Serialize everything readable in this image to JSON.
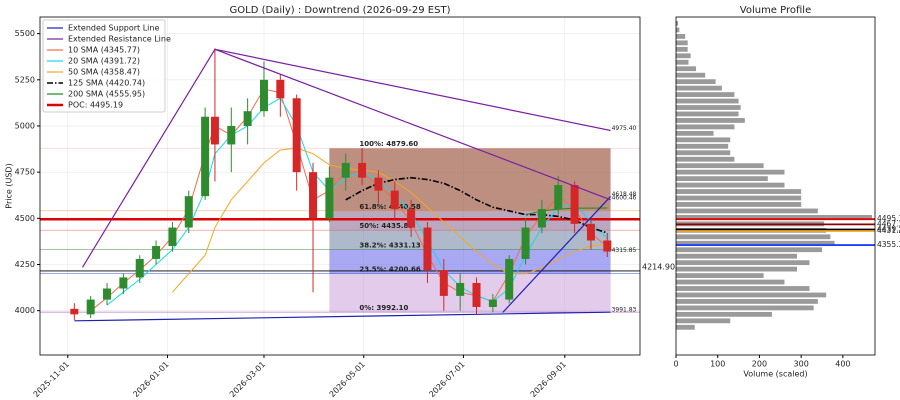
{
  "chart_data": [
    {
      "type": "candlestick",
      "title": "GOLD (Daily) : Downtrend (2026-09-29 EST)",
      "y_label": "Price (USD)",
      "x": [
        "2025-11-05",
        "2025-11-15",
        "2025-11-25",
        "2025-12-05",
        "2025-12-15",
        "2025-12-25",
        "2026-01-04",
        "2026-01-14",
        "2026-01-24",
        "2026-01-30",
        "2026-02-09",
        "2026-02-19",
        "2026-03-01",
        "2026-03-11",
        "2026-03-21",
        "2026-03-31",
        "2026-04-10",
        "2026-04-20",
        "2026-04-30",
        "2026-05-10",
        "2026-05-20",
        "2026-05-30",
        "2026-06-09",
        "2026-06-19",
        "2026-06-29",
        "2026-07-09",
        "2026-07-19",
        "2026-07-29",
        "2026-08-08",
        "2026-08-18",
        "2026-08-28",
        "2026-09-07",
        "2026-09-17",
        "2026-09-27"
      ],
      "open": [
        4010,
        3980,
        4060,
        4120,
        4180,
        4280,
        4350,
        4450,
        4620,
        5050,
        4900,
        5000,
        5080,
        5250,
        5150,
        4750,
        4500,
        4720,
        4800,
        4720,
        4650,
        4550,
        4450,
        4220,
        4080,
        4150,
        4020,
        4060,
        4280,
        4450,
        4550,
        4680,
        4470,
        4380
      ],
      "high": [
        4040,
        4080,
        4150,
        4200,
        4300,
        4380,
        4480,
        4650,
        5100,
        5420,
        5100,
        5150,
        5350,
        5280,
        5170,
        4800,
        4780,
        4850,
        4880,
        4760,
        4700,
        4600,
        4480,
        4280,
        4200,
        4180,
        4090,
        4300,
        4500,
        4600,
        4730,
        4700,
        4500,
        4420
      ],
      "low": [
        3950,
        3960,
        4030,
        4090,
        4150,
        4250,
        4320,
        4420,
        4600,
        4700,
        4750,
        4900,
        5050,
        5050,
        4650,
        4100,
        4480,
        4650,
        4680,
        4580,
        4500,
        4400,
        4150,
        4000,
        4000,
        3980,
        3990,
        4040,
        4250,
        4420,
        4520,
        4420,
        4330,
        4290
      ],
      "close": [
        3980,
        4060,
        4120,
        4180,
        4280,
        4350,
        4450,
        4620,
        5050,
        4900,
        5000,
        5080,
        5250,
        5150,
        4750,
        4500,
        4720,
        4800,
        4720,
        4650,
        4550,
        4450,
        4220,
        4080,
        4150,
        4020,
        4060,
        4280,
        4450,
        4550,
        4680,
        4470,
        4380,
        4320
      ],
      "up_color": "#2e8b2e",
      "down_color": "#d62728",
      "xlim": [
        "2025-10-15",
        "2026-10-17"
      ],
      "xticks": [
        "2025-11-01",
        "2026-01-01",
        "2026-03-01",
        "2026-05-01",
        "2026-07-01",
        "2026-09-01"
      ],
      "ylim": [
        3760,
        5590
      ],
      "yticks": [
        4000,
        4250,
        4500,
        4750,
        5000,
        5250,
        5500
      ],
      "grid": true,
      "legend": "upper left",
      "trend_lines": [
        {
          "name": "Extended Support Line",
          "color": "#1f1fb4",
          "x": [
            "2025-11-05",
            "2026-09-29",
            "2026-09-29",
            "2026-07-25",
            "2026-09-29"
          ],
          "values": [
            3945,
            3991.83,
            null,
            3990,
            4618.48
          ]
        },
        {
          "name": "Extended Resistance Line",
          "color": "#7b1fa2",
          "x": [
            "2025-11-10",
            "2026-01-30",
            "2026-09-29",
            "2026-09-29",
            "2026-01-30",
            "2026-09-29"
          ],
          "values": [
            4235,
            5415,
            4975.4,
            null,
            5415,
            4600.46
          ]
        }
      ],
      "series": [
        {
          "name": "10 SMA (4345.77)",
          "color": "#f26b4f",
          "style": "solid",
          "values": [
            null,
            4000,
            4070,
            4150,
            4220,
            4300,
            4400,
            4550,
            4850,
            5000,
            4950,
            5050,
            5200,
            5180,
            4900,
            4600,
            4650,
            4750,
            4750,
            4680,
            4600,
            4480,
            4300,
            4150,
            4100,
            4080,
            4050,
            4200,
            4400,
            4520,
            4620,
            4550,
            4420,
            4345.77
          ]
        },
        {
          "name": "20 SMA (4391.72)",
          "color": "#14d8f0",
          "style": "solid",
          "values": [
            null,
            null,
            4030,
            4100,
            4170,
            4250,
            4330,
            4450,
            4650,
            4850,
            4950,
            5000,
            5100,
            5150,
            5000,
            4750,
            4650,
            4720,
            4750,
            4700,
            4630,
            4530,
            4380,
            4220,
            4130,
            4080,
            4050,
            4120,
            4300,
            4450,
            4560,
            4580,
            4480,
            4391.72
          ]
        },
        {
          "name": "50 SMA (4358.47)",
          "color": "#f5a623",
          "style": "solid",
          "values": [
            null,
            null,
            null,
            null,
            null,
            null,
            4100,
            4200,
            4300,
            4450,
            4600,
            4700,
            4800,
            4870,
            4880,
            4850,
            4790,
            4770,
            4760,
            4750,
            4700,
            4640,
            4560,
            4480,
            4400,
            4320,
            4250,
            4200,
            4200,
            4230,
            4280,
            4320,
            4350,
            4358.47
          ]
        },
        {
          "name": "125 SMA (4420.74)",
          "color": "#000000",
          "style": "dashdot",
          "values": [
            null,
            null,
            null,
            null,
            null,
            null,
            null,
            null,
            null,
            null,
            null,
            null,
            null,
            null,
            null,
            null,
            null,
            4600,
            4650,
            4690,
            4710,
            4720,
            4710,
            4690,
            4650,
            4600,
            4560,
            4540,
            4520,
            4520,
            4510,
            4490,
            4450,
            4420.74
          ]
        },
        {
          "name": "200 SMA (4555.95)",
          "color": "#1a8a1a",
          "style": "solid",
          "values": [
            null,
            null,
            null,
            null,
            null,
            null,
            null,
            null,
            null,
            null,
            null,
            null,
            null,
            null,
            null,
            null,
            null,
            null,
            null,
            null,
            null,
            null,
            null,
            null,
            null,
            null,
            null,
            null,
            4520,
            4540,
            4550,
            4555,
            4555,
            4555.95
          ]
        }
      ],
      "levels": [
        {
          "name": "POC: 4495.19",
          "value": 4495.19,
          "color": "#e00000"
        },
        {
          "value": 4214.9,
          "label": "4214.90",
          "color": "#000000"
        }
      ],
      "end_labels": [
        {
          "value": 4975.4,
          "label": "4975.40",
          "color": "#7b1fa2"
        },
        {
          "value": 4618.48,
          "label": "4618.48",
          "color": "#1f1fb4"
        },
        {
          "value": 4600.46,
          "label": "4600.46",
          "color": "#7b1fa2"
        },
        {
          "value": 4315.85,
          "label": "4315.85",
          "color": "#7b1fa2"
        },
        {
          "value": 3991.83,
          "label": "3991.83",
          "color": "#1f1fb4"
        }
      ],
      "fibonacci": {
        "x": [
          "2026-04-10",
          "2026-09-29"
        ],
        "levels": [
          {
            "value": 3992.1,
            "label": "0%: 3992.10",
            "color": "#8e24aa"
          },
          {
            "value": 4200.66,
            "label": "23.5%: 4200.66",
            "color": "#1a3fcf",
            "fill": "rgba(190,140,210,0.45)"
          },
          {
            "value": 4331.13,
            "label": "38.2%: 4331.13",
            "color": "#2e7d32",
            "fill": "rgba(110,110,235,0.6)"
          },
          {
            "value": 4435.85,
            "label": "50%: 4435.85",
            "color": "#e53935",
            "fill": "rgba(120,140,170,0.6)"
          },
          {
            "value": 4540.58,
            "label": "61.8%: 4540.58",
            "color": "#e67e22",
            "fill": "rgba(140,110,150,0.6)"
          },
          {
            "value": 4879.6,
            "label": "100%: 4879.60",
            "color": "#f4a0b0",
            "fill": "rgba(160,95,75,0.7)"
          }
        ]
      }
    },
    {
      "type": "hbar",
      "title": "Volume Profile",
      "x_label": "Volume (scaled)",
      "y": [
        3910,
        3945,
        3980,
        4015,
        4050,
        4085,
        4120,
        4155,
        4190,
        4225,
        4260,
        4295,
        4330,
        4365,
        4400,
        4435,
        4470,
        4505,
        4540,
        4575,
        4610,
        4645,
        4680,
        4715,
        4750,
        4785,
        4820,
        4855,
        4890,
        4925,
        4960,
        4995,
        5030,
        5065,
        5100,
        5135,
        5170,
        5205,
        5240,
        5275,
        5310,
        5345,
        5380,
        5415,
        5450,
        5485,
        5520,
        5555
      ],
      "values": [
        45,
        130,
        230,
        330,
        340,
        360,
        320,
        260,
        210,
        290,
        320,
        290,
        350,
        380,
        370,
        360,
        355,
        470,
        340,
        300,
        300,
        300,
        260,
        220,
        260,
        210,
        140,
        130,
        125,
        130,
        90,
        140,
        165,
        150,
        155,
        150,
        140,
        110,
        95,
        70,
        48,
        30,
        35,
        28,
        28,
        22,
        8,
        5
      ],
      "color": "#9a9a9a",
      "xlim": [
        0,
        477
      ],
      "xticks": [
        0,
        100,
        200,
        300,
        400
      ],
      "ylim": [
        3760,
        5590
      ],
      "levels": [
        {
          "value": 4495.19,
          "label": "4495.19",
          "color": "#e00000"
        },
        {
          "value": 4467.32,
          "label": "4467.32",
          "color": "#8b0000"
        },
        {
          "value": 4439.24,
          "label": "4439.24",
          "color": "#000000"
        },
        {
          "value": 4431.27,
          "label": "4431.27",
          "color": "#f5a623"
        },
        {
          "value": 4355.32,
          "label": "4355.32",
          "color": "#1f3fff"
        }
      ]
    }
  ]
}
